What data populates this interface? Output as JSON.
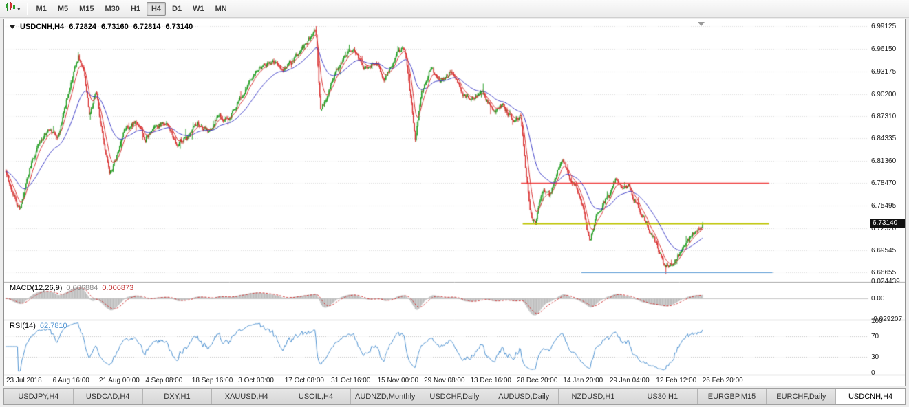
{
  "toolbar": {
    "timeframes": [
      "M1",
      "M5",
      "M15",
      "M30",
      "H1",
      "H4",
      "D1",
      "W1",
      "MN"
    ],
    "active_timeframe": "H4",
    "chart_type_icon": "candlestick-chart-icon",
    "dropdown_icon": "chevron-down-icon"
  },
  "chart_header": {
    "symbol": "USDCNH,H4",
    "open": "6.72824",
    "high": "6.73160",
    "low": "6.72814",
    "close": "6.73140"
  },
  "chart_data": {
    "type": "candlestick",
    "symbol": "USDCNH",
    "timeframe": "H4",
    "bars": 760,
    "y_axis": {
      "min": 6.654,
      "max": 6.998,
      "labels": [
        "6.99125",
        "6.96150",
        "6.93175",
        "6.90200",
        "6.87310",
        "6.84335",
        "6.81360",
        "6.78470",
        "6.75495",
        "6.72520",
        "6.69545",
        "6.66655"
      ]
    },
    "current_price": "6.73140",
    "x_axis_dates": [
      "23 Jul 2018",
      "6 Aug 16:00",
      "21 Aug 00:00",
      "4 Sep 08:00",
      "18 Sep 16:00",
      "3 Oct 00:00",
      "17 Oct 08:00",
      "31 Oct 16:00",
      "15 Nov 00:00",
      "29 Nov 08:00",
      "13 Dec 16:00",
      "28 Dec 20:00",
      "14 Jan 20:00",
      "29 Jan 04:00",
      "12 Feb 12:00",
      "26 Feb 20:00"
    ],
    "price_path": [
      [
        0.0,
        6.8
      ],
      [
        0.01,
        6.772
      ],
      [
        0.02,
        6.748
      ],
      [
        0.034,
        6.802
      ],
      [
        0.048,
        6.838
      ],
      [
        0.062,
        6.856
      ],
      [
        0.075,
        6.845
      ],
      [
        0.088,
        6.895
      ],
      [
        0.104,
        6.952
      ],
      [
        0.112,
        6.93
      ],
      [
        0.12,
        6.878
      ],
      [
        0.13,
        6.902
      ],
      [
        0.14,
        6.842
      ],
      [
        0.149,
        6.797
      ],
      [
        0.16,
        6.822
      ],
      [
        0.17,
        6.852
      ],
      [
        0.186,
        6.866
      ],
      [
        0.2,
        6.842
      ],
      [
        0.216,
        6.858
      ],
      [
        0.23,
        6.868
      ],
      [
        0.244,
        6.836
      ],
      [
        0.26,
        6.846
      ],
      [
        0.276,
        6.862
      ],
      [
        0.292,
        6.852
      ],
      [
        0.306,
        6.876
      ],
      [
        0.32,
        6.866
      ],
      [
        0.336,
        6.896
      ],
      [
        0.352,
        6.924
      ],
      [
        0.366,
        6.936
      ],
      [
        0.384,
        6.946
      ],
      [
        0.4,
        6.934
      ],
      [
        0.42,
        6.956
      ],
      [
        0.437,
        6.976
      ],
      [
        0.445,
        6.986
      ],
      [
        0.452,
        6.878
      ],
      [
        0.462,
        6.902
      ],
      [
        0.476,
        6.936
      ],
      [
        0.49,
        6.956
      ],
      [
        0.5,
        6.964
      ],
      [
        0.514,
        6.936
      ],
      [
        0.53,
        6.946
      ],
      [
        0.544,
        6.92
      ],
      [
        0.56,
        6.954
      ],
      [
        0.572,
        6.964
      ],
      [
        0.582,
        6.892
      ],
      [
        0.588,
        6.838
      ],
      [
        0.596,
        6.902
      ],
      [
        0.61,
        6.936
      ],
      [
        0.624,
        6.92
      ],
      [
        0.64,
        6.934
      ],
      [
        0.654,
        6.902
      ],
      [
        0.67,
        6.896
      ],
      [
        0.684,
        6.906
      ],
      [
        0.7,
        6.876
      ],
      [
        0.714,
        6.886
      ],
      [
        0.73,
        6.864
      ],
      [
        0.739,
        6.876
      ],
      [
        0.746,
        6.8
      ],
      [
        0.753,
        6.746
      ],
      [
        0.76,
        6.728
      ],
      [
        0.77,
        6.776
      ],
      [
        0.78,
        6.768
      ],
      [
        0.792,
        6.8
      ],
      [
        0.8,
        6.814
      ],
      [
        0.81,
        6.79
      ],
      [
        0.82,
        6.776
      ],
      [
        0.83,
        6.746
      ],
      [
        0.838,
        6.706
      ],
      [
        0.846,
        6.736
      ],
      [
        0.856,
        6.756
      ],
      [
        0.866,
        6.766
      ],
      [
        0.875,
        6.79
      ],
      [
        0.885,
        6.776
      ],
      [
        0.895,
        6.78
      ],
      [
        0.905,
        6.756
      ],
      [
        0.915,
        6.74
      ],
      [
        0.925,
        6.72
      ],
      [
        0.935,
        6.7
      ],
      [
        0.945,
        6.676
      ],
      [
        0.955,
        6.672
      ],
      [
        0.965,
        6.69
      ],
      [
        0.975,
        6.702
      ],
      [
        0.985,
        6.716
      ],
      [
        1.0,
        6.731
      ]
    ],
    "hlines": [
      {
        "name": "resistance-line",
        "price": 6.7847,
        "color": "#f03c3c",
        "width": 1.6,
        "x0": 0.598,
        "x1": 0.885
      },
      {
        "name": "support-line",
        "price": 6.7314,
        "color": "#bdc400",
        "width": 2.0,
        "x0": 0.6,
        "x1": 0.885
      },
      {
        "name": "lower-support-line",
        "price": 6.667,
        "color": "#5b9bd5",
        "width": 1.2,
        "x0": 0.668,
        "x1": 0.889
      }
    ],
    "colors": {
      "up_candle": "#1f9c1f",
      "down_candle": "#d93030",
      "ma_fast": "#d93030",
      "ma_slow": "#3a3ac8",
      "macd_hist": "#bdbdbd",
      "macd_signal": "#d03434",
      "rsi_line": "#4f93d2",
      "grid": "#dcdcdc",
      "separator": "#a8a8a8",
      "badge_bg": "#101010",
      "badge_text": "#ffffff"
    },
    "indicators": {
      "macd": {
        "name": "MACD(12,26,9)",
        "value_main": "0.006884",
        "value_signal": "0.006873",
        "axis_labels": [
          "0.024439",
          "0.00",
          "-0.029207"
        ]
      },
      "rsi": {
        "name": "RSI(14)",
        "value": "62.7810",
        "axis_labels": [
          "100",
          "70",
          "30",
          "0"
        ],
        "levels": [
          70,
          30
        ]
      }
    }
  },
  "tabs": {
    "items": [
      "USDJPY,H4",
      "USDCAD,H4",
      "DXY,H1",
      "XAUUSD,H4",
      "USOIL,H4",
      "AUDNZD,Monthly",
      "USDCHF,Daily",
      "AUDUSD,Daily",
      "NZDUSD,H1",
      "US30,H1",
      "EURGBP,M15",
      "EURCHF,Daily",
      "USDCNH,H4"
    ],
    "active": "USDCNH,H4"
  }
}
